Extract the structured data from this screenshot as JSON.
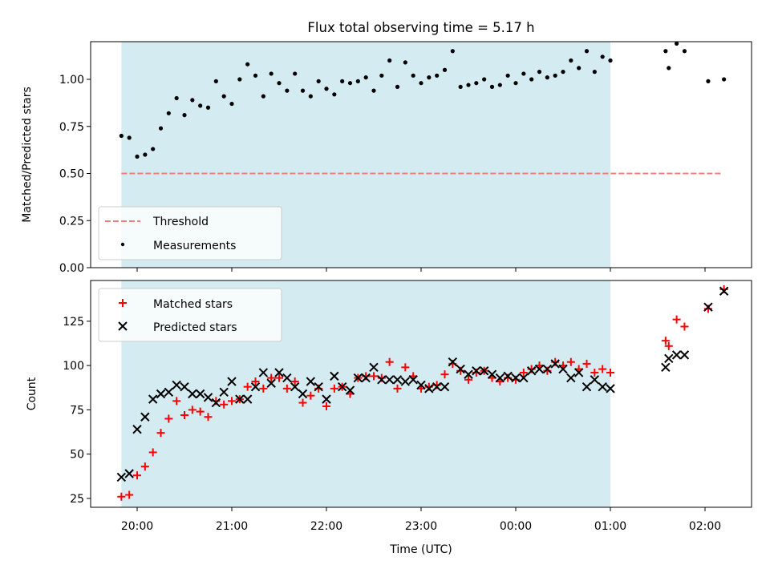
{
  "chart_data": [
    {
      "type": "scatter",
      "title": "Flux total observing time = 5.17 h",
      "ylabel": "Matched/Predicted stars",
      "xlabel": "",
      "ylim": [
        0,
        1.2
      ],
      "yticks": [
        "0.00",
        "0.25",
        "0.50",
        "0.75",
        "1.00"
      ],
      "grid": false,
      "legend_position": "lower-left",
      "shaded_span": {
        "x_start": "19:50",
        "x_end": "01:00",
        "color": "#d3ebf1"
      },
      "threshold": {
        "name": "Threshold",
        "value": 0.5,
        "x_start": "19:50",
        "x_end": "02:10",
        "color": "#f08080",
        "style": "dashed"
      },
      "series": [
        {
          "name": "Measurements",
          "color": "#000000",
          "marker": "dot",
          "x": [
            "19:50",
            "19:55",
            "20:00",
            "20:05",
            "20:10",
            "20:15",
            "20:20",
            "20:25",
            "20:30",
            "20:35",
            "20:40",
            "20:45",
            "20:50",
            "20:55",
            "21:00",
            "21:05",
            "21:10",
            "21:15",
            "21:20",
            "21:25",
            "21:30",
            "21:35",
            "21:40",
            "21:45",
            "21:50",
            "21:55",
            "22:00",
            "22:05",
            "22:10",
            "22:15",
            "22:20",
            "22:25",
            "22:30",
            "22:35",
            "22:40",
            "22:45",
            "22:50",
            "22:55",
            "23:00",
            "23:05",
            "23:10",
            "23:15",
            "23:20",
            "23:25",
            "23:30",
            "23:35",
            "23:40",
            "23:45",
            "23:50",
            "23:55",
            "00:00",
            "00:05",
            "00:10",
            "00:15",
            "00:20",
            "00:25",
            "00:30",
            "00:35",
            "00:40",
            "00:45",
            "00:50",
            "00:55",
            "01:00",
            "01:35",
            "01:37",
            "01:42",
            "01:47",
            "02:02",
            "02:12"
          ],
          "y": [
            0.7,
            0.69,
            0.59,
            0.6,
            0.63,
            0.74,
            0.82,
            0.9,
            0.81,
            0.89,
            0.86,
            0.85,
            0.99,
            0.91,
            0.87,
            1.0,
            1.08,
            1.02,
            0.91,
            1.03,
            0.98,
            0.94,
            1.03,
            0.94,
            0.91,
            0.99,
            0.95,
            0.92,
            0.99,
            0.98,
            0.99,
            1.01,
            0.94,
            1.02,
            1.1,
            0.96,
            1.09,
            1.02,
            0.98,
            1.01,
            1.02,
            1.05,
            1.15,
            0.96,
            0.97,
            0.98,
            1.0,
            0.96,
            0.97,
            1.02,
            0.98,
            1.03,
            1.0,
            1.04,
            1.01,
            1.02,
            1.04,
            1.1,
            1.06,
            1.15,
            1.04,
            1.12,
            1.1,
            1.15,
            1.06,
            1.19,
            1.15,
            0.99,
            1.0
          ]
        }
      ]
    },
    {
      "type": "scatter",
      "title": "",
      "ylabel": "Count",
      "xlabel": "Time (UTC)",
      "ylim": [
        20,
        148
      ],
      "yticks": [
        "25",
        "50",
        "75",
        "100",
        "125"
      ],
      "xticks": [
        "20:00",
        "21:00",
        "22:00",
        "23:00",
        "00:00",
        "01:00",
        "02:00"
      ],
      "grid": false,
      "legend_position": "upper-left",
      "shaded_span": {
        "x_start": "19:50",
        "x_end": "01:00",
        "color": "#d3ebf1"
      },
      "series": [
        {
          "name": "Matched stars",
          "color": "#ff0000",
          "marker": "plus",
          "x": [
            "19:50",
            "19:55",
            "20:00",
            "20:05",
            "20:10",
            "20:15",
            "20:20",
            "20:25",
            "20:30",
            "20:35",
            "20:40",
            "20:45",
            "20:50",
            "20:55",
            "21:00",
            "21:05",
            "21:10",
            "21:15",
            "21:20",
            "21:25",
            "21:30",
            "21:35",
            "21:40",
            "21:45",
            "21:50",
            "21:55",
            "22:00",
            "22:05",
            "22:10",
            "22:15",
            "22:20",
            "22:25",
            "22:30",
            "22:35",
            "22:40",
            "22:45",
            "22:50",
            "22:55",
            "23:00",
            "23:05",
            "23:10",
            "23:15",
            "23:20",
            "23:25",
            "23:30",
            "23:35",
            "23:40",
            "23:45",
            "23:50",
            "23:55",
            "00:00",
            "00:05",
            "00:10",
            "00:15",
            "00:20",
            "00:25",
            "00:30",
            "00:35",
            "00:40",
            "00:45",
            "00:50",
            "00:55",
            "01:00",
            "01:35",
            "01:37",
            "01:42",
            "01:47",
            "02:02",
            "02:12"
          ],
          "y": [
            26,
            27,
            38,
            43,
            51,
            62,
            70,
            80,
            72,
            75,
            74,
            71,
            80,
            78,
            80,
            81,
            88,
            91,
            87,
            93,
            93,
            87,
            91,
            79,
            83,
            87,
            77,
            87,
            88,
            84,
            93,
            94,
            94,
            93,
            102,
            87,
            99,
            94,
            87,
            88,
            89,
            95,
            101,
            97,
            92,
            96,
            97,
            93,
            91,
            93,
            92,
            96,
            98,
            100,
            97,
            102,
            100,
            102,
            98,
            101,
            96,
            98,
            96,
            114,
            111,
            126,
            122,
            132,
            143
          ]
        },
        {
          "name": "Predicted stars",
          "color": "#000000",
          "marker": "x",
          "x": [
            "19:50",
            "19:55",
            "20:00",
            "20:05",
            "20:10",
            "20:15",
            "20:20",
            "20:25",
            "20:30",
            "20:35",
            "20:40",
            "20:45",
            "20:50",
            "20:55",
            "21:00",
            "21:05",
            "21:10",
            "21:15",
            "21:20",
            "21:25",
            "21:30",
            "21:35",
            "21:40",
            "21:45",
            "21:50",
            "21:55",
            "22:00",
            "22:05",
            "22:10",
            "22:15",
            "22:20",
            "22:25",
            "22:30",
            "22:35",
            "22:40",
            "22:45",
            "22:50",
            "22:55",
            "23:00",
            "23:05",
            "23:10",
            "23:15",
            "23:20",
            "23:25",
            "23:30",
            "23:35",
            "23:40",
            "23:45",
            "23:50",
            "23:55",
            "00:00",
            "00:05",
            "00:10",
            "00:15",
            "00:20",
            "00:25",
            "00:30",
            "00:35",
            "00:40",
            "00:45",
            "00:50",
            "00:55",
            "01:00",
            "01:35",
            "01:37",
            "01:42",
            "01:47",
            "02:02",
            "02:12"
          ],
          "y": [
            37,
            39,
            64,
            71,
            81,
            84,
            85,
            89,
            88,
            84,
            84,
            82,
            79,
            85,
            91,
            81,
            81,
            88,
            96,
            90,
            96,
            93,
            88,
            84,
            91,
            88,
            81,
            94,
            88,
            86,
            93,
            93,
            99,
            92,
            92,
            92,
            91,
            92,
            89,
            87,
            88,
            88,
            102,
            98,
            95,
            97,
            97,
            95,
            93,
            94,
            93,
            93,
            97,
            98,
            98,
            101,
            98,
            93,
            96,
            88,
            92,
            88,
            87,
            99,
            104,
            106,
            106,
            133,
            142
          ]
        }
      ]
    }
  ]
}
